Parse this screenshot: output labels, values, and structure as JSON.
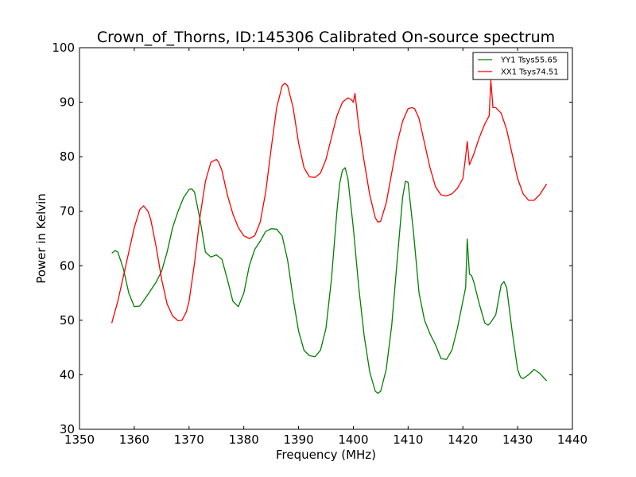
{
  "chart_data": {
    "type": "line",
    "title": "Crown_of_Thorns, ID:145306 Calibrated On-source spectrum",
    "xlabel": "Frequency (MHz)",
    "ylabel": "Power in Kelvin",
    "xlim": [
      1350,
      1440
    ],
    "ylim": [
      30,
      100
    ],
    "xticks": [
      1350,
      1360,
      1370,
      1380,
      1390,
      1400,
      1410,
      1420,
      1430,
      1440
    ],
    "yticks": [
      30,
      40,
      50,
      60,
      70,
      80,
      90,
      100
    ],
    "grid": false,
    "legend": "top-right",
    "series": [
      {
        "name": "YY1 Tsys55.65",
        "color": "#008000",
        "x": [
          1355.9,
          1356.5,
          1357.0,
          1358.0,
          1359.0,
          1360.0,
          1361.0,
          1362.0,
          1363.0,
          1364.0,
          1365.0,
          1366.0,
          1367.0,
          1368.0,
          1369.0,
          1370.0,
          1370.5,
          1371.0,
          1372.0,
          1373.0,
          1374.0,
          1375.0,
          1376.0,
          1377.0,
          1378.0,
          1379.0,
          1380.0,
          1381.0,
          1382.0,
          1383.0,
          1384.0,
          1385.0,
          1386.0,
          1387.0,
          1388.0,
          1389.0,
          1390.0,
          1391.0,
          1392.0,
          1393.0,
          1394.0,
          1395.0,
          1396.0,
          1397.0,
          1397.5,
          1398.0,
          1398.5,
          1399.0,
          1400.0,
          1401.0,
          1402.0,
          1403.0,
          1404.0,
          1404.5,
          1405.0,
          1406.0,
          1407.0,
          1408.0,
          1409.0,
          1409.5,
          1410.0,
          1411.0,
          1412.0,
          1413.0,
          1414.0,
          1415.0,
          1416.0,
          1417.0,
          1418.0,
          1419.0,
          1420.0,
          1420.5,
          1420.8,
          1421.2,
          1421.6,
          1422.0,
          1423.0,
          1424.0,
          1424.6,
          1425.0,
          1426.0,
          1427.0,
          1427.5,
          1428.0,
          1429.0,
          1430.0,
          1430.5,
          1431.0,
          1432.0,
          1433.0,
          1434.0,
          1435.3
        ],
        "values": [
          62.3,
          62.8,
          62.5,
          59.5,
          55.0,
          52.5,
          52.6,
          54.0,
          55.5,
          57.0,
          59.0,
          62.5,
          67.0,
          70.0,
          72.5,
          74.0,
          74.1,
          73.5,
          68.5,
          62.5,
          61.6,
          62.0,
          61.2,
          57.5,
          53.5,
          52.5,
          55.0,
          60.0,
          63.0,
          64.5,
          66.3,
          66.8,
          66.7,
          65.5,
          61.0,
          54.0,
          48.0,
          44.5,
          43.5,
          43.3,
          44.5,
          48.5,
          57.5,
          70.0,
          75.0,
          77.5,
          78.0,
          76.0,
          67.0,
          56.0,
          47.0,
          40.5,
          37.0,
          36.6,
          37.0,
          41.0,
          49.0,
          61.0,
          72.5,
          75.5,
          75.3,
          66.0,
          55.0,
          50.0,
          47.5,
          45.5,
          43.0,
          42.8,
          44.5,
          48.5,
          53.5,
          56.0,
          64.9,
          58.5,
          58.2,
          57.0,
          53.0,
          49.5,
          49.1,
          49.5,
          51.0,
          56.5,
          57.1,
          56.0,
          48.0,
          41.0,
          39.6,
          39.3,
          40.0,
          41.0,
          40.3,
          38.9
        ]
      },
      {
        "name": "XX1 Tsys74.51",
        "color": "#ff0000",
        "x": [
          1355.9,
          1357.0,
          1358.0,
          1359.0,
          1360.0,
          1361.0,
          1361.7,
          1362.5,
          1363.0,
          1364.0,
          1365.0,
          1366.0,
          1367.0,
          1368.0,
          1368.7,
          1369.5,
          1370.0,
          1371.0,
          1372.0,
          1373.0,
          1374.0,
          1375.0,
          1375.4,
          1376.0,
          1377.0,
          1378.0,
          1379.0,
          1380.0,
          1381.0,
          1382.0,
          1383.0,
          1384.0,
          1385.0,
          1386.0,
          1387.0,
          1387.5,
          1388.0,
          1389.0,
          1390.0,
          1391.0,
          1392.0,
          1393.0,
          1394.0,
          1395.0,
          1396.0,
          1397.0,
          1398.0,
          1399.0,
          1399.6,
          1400.0,
          1400.3,
          1400.6,
          1401.0,
          1402.0,
          1403.0,
          1404.0,
          1404.5,
          1405.0,
          1406.0,
          1407.0,
          1408.0,
          1409.0,
          1410.0,
          1410.7,
          1411.2,
          1412.0,
          1413.0,
          1414.0,
          1415.0,
          1416.0,
          1417.0,
          1418.0,
          1419.0,
          1420.0,
          1420.5,
          1420.8,
          1421.2,
          1422.0,
          1423.0,
          1424.0,
          1424.8,
          1425.1,
          1425.5,
          1426.0,
          1427.0,
          1428.0,
          1429.0,
          1430.0,
          1431.0,
          1432.0,
          1433.0,
          1434.0,
          1435.3
        ],
        "values": [
          49.5,
          53.5,
          58.0,
          62.5,
          67.0,
          70.3,
          71.0,
          70.0,
          68.5,
          63.5,
          57.5,
          53.0,
          50.8,
          49.9,
          50.0,
          51.5,
          53.5,
          60.5,
          69.0,
          75.5,
          79.0,
          79.5,
          79.0,
          77.5,
          73.0,
          69.5,
          67.0,
          65.5,
          65.0,
          65.5,
          68.0,
          73.5,
          81.5,
          89.0,
          93.0,
          93.5,
          93.0,
          89.0,
          82.5,
          78.0,
          76.3,
          76.2,
          77.0,
          79.5,
          83.5,
          87.5,
          90.0,
          90.8,
          90.5,
          90.0,
          91.6,
          89.0,
          85.5,
          79.0,
          73.0,
          68.8,
          68.0,
          68.2,
          71.5,
          77.0,
          82.5,
          86.5,
          88.8,
          89.0,
          88.8,
          87.0,
          82.5,
          78.0,
          74.5,
          73.0,
          72.8,
          73.2,
          74.2,
          76.0,
          80.0,
          82.8,
          78.5,
          80.5,
          83.5,
          86.0,
          87.5,
          94.0,
          89.0,
          89.0,
          88.0,
          85.0,
          80.5,
          76.0,
          73.2,
          72.0,
          72.0,
          73.0,
          75.0
        ]
      }
    ]
  }
}
